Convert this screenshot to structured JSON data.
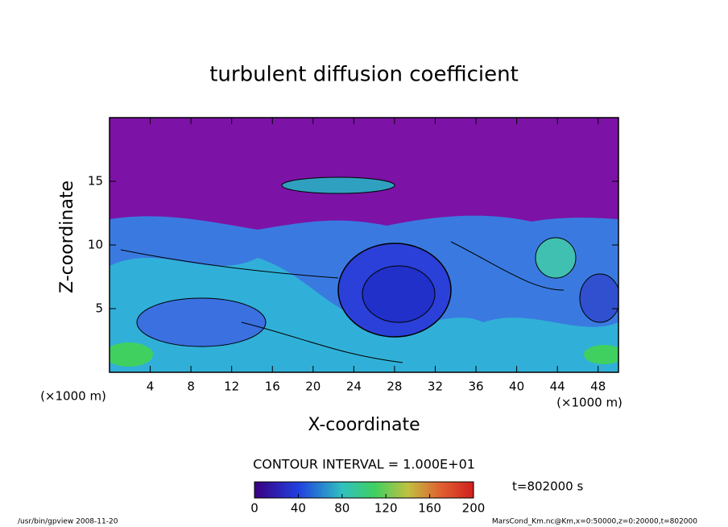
{
  "chart_data": {
    "type": "contour",
    "title": "turbulent diffusion coefficient",
    "xlabel": "X-coordinate",
    "ylabel": "Z-coordinate",
    "xunit": "(×1000 m)",
    "yunit": "(×1000 m)",
    "xlim": [
      0,
      50
    ],
    "xticks": [
      4,
      8,
      12,
      16,
      20,
      24,
      28,
      32,
      36,
      40,
      44,
      48
    ],
    "ylim": [
      0,
      20
    ],
    "yticks": [
      5,
      10,
      15
    ],
    "contour_interval": "CONTOUR INTERVAL = 1.000E+01",
    "clim": [
      0,
      200
    ],
    "cticks": [
      0,
      40,
      80,
      120,
      160,
      200
    ],
    "time_label": "t=802000 s",
    "footer_left": "/usr/bin/gpview  2008-11-20",
    "footer_right": "MarsCond_Km.nc@Km,x=0:50000,z=0:20000,t=802000"
  }
}
